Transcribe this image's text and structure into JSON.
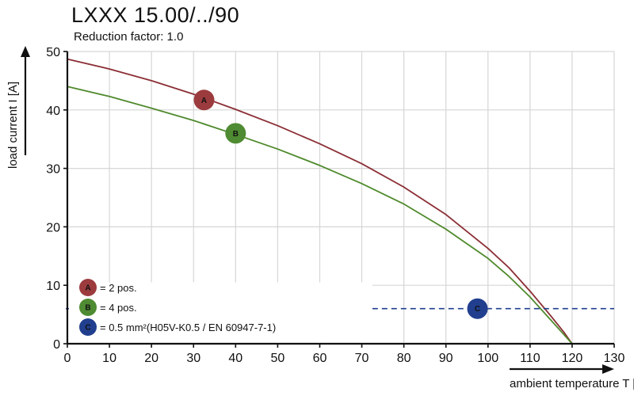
{
  "header": {
    "title": "LXXX  15.00/../90",
    "subtitle": "Reduction  factor: 1.0"
  },
  "chart_data": {
    "type": "line",
    "title": "LXXX 15.00/../90",
    "subtitle": "Reduction factor: 1.0",
    "xlabel": "ambient temperature T [°C]",
    "ylabel": "load current I [A]",
    "xlim": [
      0,
      130
    ],
    "ylim": [
      0,
      50
    ],
    "x_ticks": [
      0,
      10,
      20,
      30,
      40,
      50,
      60,
      70,
      80,
      90,
      100,
      110,
      120,
      130
    ],
    "y_ticks": [
      0,
      10,
      20,
      30,
      40,
      50
    ],
    "grid": true,
    "series": [
      {
        "name": "A",
        "legend": "= 2 pos.",
        "color": "#8b2e35",
        "badge_color": "#9c3b3e",
        "style": "solid",
        "x": [
          0,
          10,
          20,
          30,
          40,
          50,
          60,
          70,
          80,
          90,
          100,
          105,
          110,
          115,
          118,
          120
        ],
        "y": [
          48.7,
          47.0,
          45.0,
          42.7,
          40.1,
          37.3,
          34.2,
          30.8,
          26.8,
          22.1,
          16.3,
          13.0,
          9.0,
          4.7,
          2.0,
          0
        ],
        "marker_at": [
          32.5,
          41.7
        ]
      },
      {
        "name": "B",
        "legend": "= 4 pos.",
        "color": "#4f8a2c",
        "badge_color": "#4e8b32",
        "style": "solid",
        "x": [
          0,
          10,
          20,
          30,
          40,
          50,
          60,
          70,
          80,
          90,
          100,
          105,
          110,
          115,
          118,
          120
        ],
        "y": [
          44.0,
          42.3,
          40.3,
          38.2,
          35.8,
          33.3,
          30.5,
          27.4,
          23.9,
          19.6,
          14.6,
          11.5,
          8.0,
          4.0,
          1.6,
          0
        ],
        "marker_at": [
          40,
          36
        ]
      },
      {
        "name": "C",
        "legend": "= 0.5 mm²(H05V-K0.5 / EN 60947-7-1)",
        "color": "#1f3f8f",
        "badge_color": "#213f8e",
        "style": "dashed",
        "x": [
          72.5,
          130
        ],
        "y": [
          6,
          6
        ],
        "marker_at": [
          97.5,
          6
        ]
      }
    ]
  }
}
